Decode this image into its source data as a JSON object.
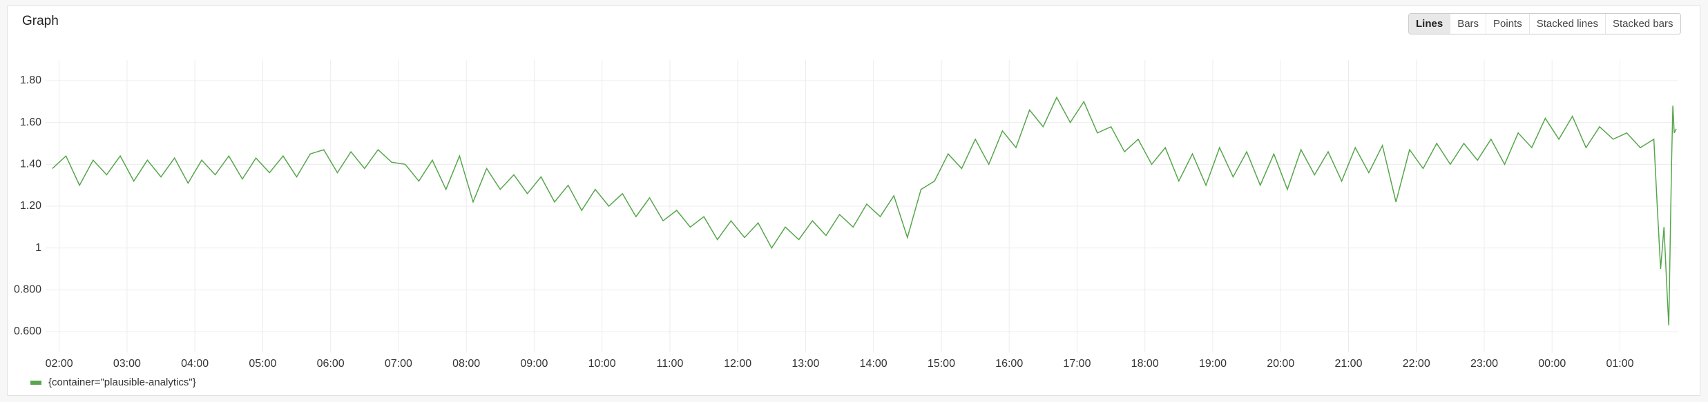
{
  "chart_data": {
    "type": "line",
    "title": "Graph",
    "toolbar": {
      "buttons": [
        "Lines",
        "Bars",
        "Points",
        "Stacked lines",
        "Stacked bars"
      ],
      "active": 0
    },
    "x": [
      1.9,
      2.1,
      2.3,
      2.5,
      2.7,
      2.9,
      3.1,
      3.3,
      3.5,
      3.7,
      3.9,
      4.1,
      4.3,
      4.5,
      4.7,
      4.9,
      5.1,
      5.3,
      5.5,
      5.7,
      5.9,
      6.1,
      6.3,
      6.5,
      6.7,
      6.9,
      7.1,
      7.3,
      7.5,
      7.7,
      7.9,
      8.1,
      8.3,
      8.5,
      8.7,
      8.9,
      9.1,
      9.3,
      9.5,
      9.7,
      9.9,
      10.1,
      10.3,
      10.5,
      10.7,
      10.9,
      11.1,
      11.3,
      11.5,
      11.7,
      11.9,
      12.1,
      12.3,
      12.5,
      12.7,
      12.9,
      13.1,
      13.3,
      13.5,
      13.7,
      13.9,
      14.1,
      14.3,
      14.5,
      14.7,
      14.9,
      15.1,
      15.3,
      15.5,
      15.7,
      15.9,
      16.1,
      16.3,
      16.5,
      16.7,
      16.9,
      17.1,
      17.3,
      17.5,
      17.7,
      17.9,
      18.1,
      18.3,
      18.5,
      18.7,
      18.9,
      19.1,
      19.3,
      19.5,
      19.7,
      19.9,
      20.1,
      20.3,
      20.5,
      20.7,
      20.9,
      21.1,
      21.3,
      21.5,
      21.7,
      21.9,
      22.1,
      22.3,
      22.5,
      22.7,
      22.9,
      23.1,
      23.3,
      23.5,
      23.7,
      23.9,
      24.1,
      24.3,
      24.5,
      24.7,
      24.9,
      25.1,
      25.3,
      25.5,
      25.55,
      25.6,
      25.65,
      25.7,
      25.72,
      25.76,
      25.78,
      25.8,
      25.83
    ],
    "series": [
      {
        "name": "{container=\"plausible-analytics\"}",
        "color": "#56a64b",
        "values": [
          1.38,
          1.44,
          1.3,
          1.42,
          1.35,
          1.44,
          1.32,
          1.42,
          1.34,
          1.43,
          1.31,
          1.42,
          1.35,
          1.44,
          1.33,
          1.43,
          1.36,
          1.44,
          1.34,
          1.45,
          1.47,
          1.36,
          1.46,
          1.38,
          1.47,
          1.41,
          1.4,
          1.32,
          1.42,
          1.28,
          1.44,
          1.22,
          1.38,
          1.28,
          1.35,
          1.26,
          1.34,
          1.22,
          1.3,
          1.18,
          1.28,
          1.2,
          1.26,
          1.15,
          1.24,
          1.13,
          1.18,
          1.1,
          1.15,
          1.04,
          1.13,
          1.05,
          1.12,
          1.0,
          1.1,
          1.04,
          1.13,
          1.06,
          1.16,
          1.1,
          1.21,
          1.15,
          1.25,
          1.05,
          1.28,
          1.32,
          1.45,
          1.38,
          1.52,
          1.4,
          1.56,
          1.48,
          1.66,
          1.58,
          1.72,
          1.6,
          1.7,
          1.55,
          1.58,
          1.46,
          1.52,
          1.4,
          1.48,
          1.32,
          1.45,
          1.3,
          1.48,
          1.34,
          1.46,
          1.3,
          1.45,
          1.28,
          1.47,
          1.35,
          1.46,
          1.32,
          1.48,
          1.36,
          1.49,
          1.22,
          1.47,
          1.38,
          1.5,
          1.4,
          1.5,
          1.42,
          1.52,
          1.4,
          1.55,
          1.48,
          1.62,
          1.52,
          1.63,
          1.48,
          1.58,
          1.52,
          1.55,
          1.48,
          1.52,
          1.2,
          0.9,
          1.1,
          0.75,
          0.63,
          1.4,
          1.68,
          1.55,
          1.57
        ]
      }
    ],
    "xlim": [
      1.8,
      25.85
    ],
    "xticks": [
      {
        "value": 2,
        "label": "02:00"
      },
      {
        "value": 3,
        "label": "03:00"
      },
      {
        "value": 4,
        "label": "04:00"
      },
      {
        "value": 5,
        "label": "05:00"
      },
      {
        "value": 6,
        "label": "06:00"
      },
      {
        "value": 7,
        "label": "07:00"
      },
      {
        "value": 8,
        "label": "08:00"
      },
      {
        "value": 9,
        "label": "09:00"
      },
      {
        "value": 10,
        "label": "10:00"
      },
      {
        "value": 11,
        "label": "11:00"
      },
      {
        "value": 12,
        "label": "12:00"
      },
      {
        "value": 13,
        "label": "13:00"
      },
      {
        "value": 14,
        "label": "14:00"
      },
      {
        "value": 15,
        "label": "15:00"
      },
      {
        "value": 16,
        "label": "16:00"
      },
      {
        "value": 17,
        "label": "17:00"
      },
      {
        "value": 18,
        "label": "18:00"
      },
      {
        "value": 19,
        "label": "19:00"
      },
      {
        "value": 20,
        "label": "20:00"
      },
      {
        "value": 21,
        "label": "21:00"
      },
      {
        "value": 22,
        "label": "22:00"
      },
      {
        "value": 23,
        "label": "23:00"
      },
      {
        "value": 24,
        "label": "00:00"
      },
      {
        "value": 25,
        "label": "01:00"
      }
    ],
    "ylim": [
      0.5,
      1.9
    ],
    "yticks": [
      {
        "value": 0.6,
        "label": "0.600"
      },
      {
        "value": 0.8,
        "label": "0.800"
      },
      1,
      {
        "value": 1.2,
        "label": "1.20"
      },
      {
        "value": 1.4,
        "label": "1.40"
      },
      {
        "value": 1.6,
        "label": "1.60"
      },
      {
        "value": 1.8,
        "label": "1.80"
      }
    ],
    "grid": true
  }
}
